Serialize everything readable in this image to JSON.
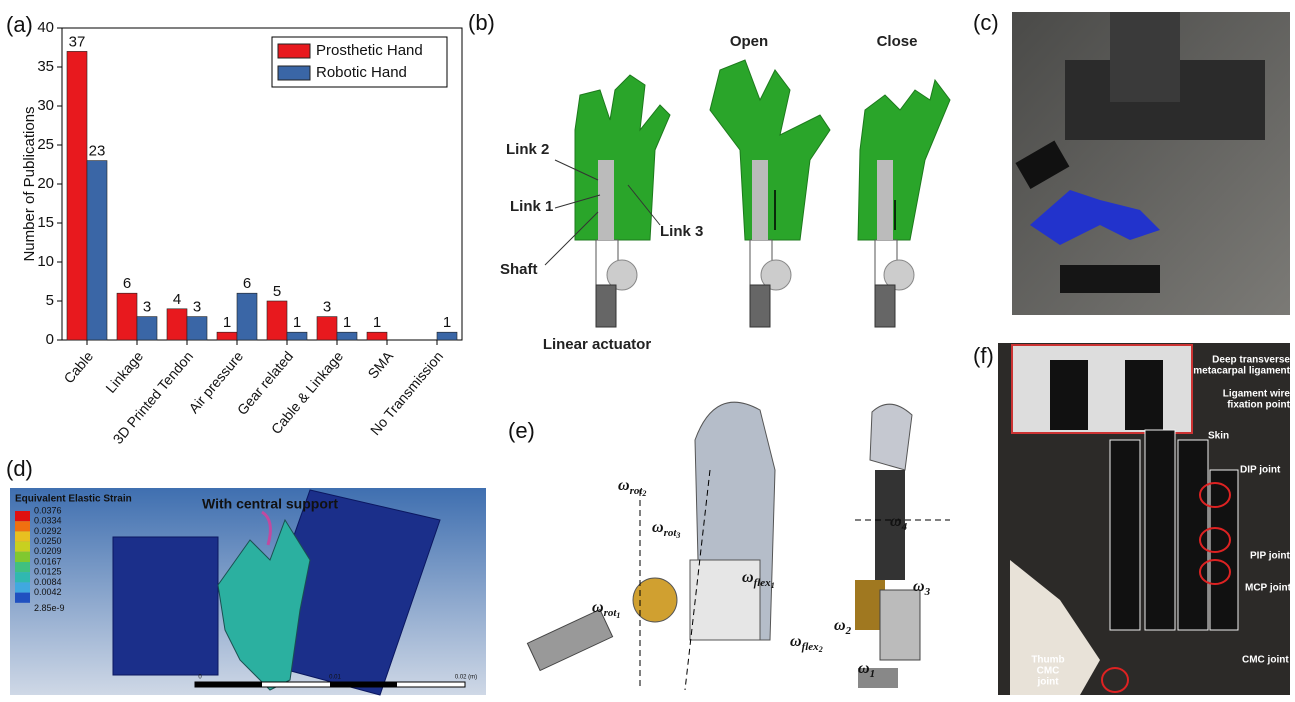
{
  "panel_labels": {
    "a": "(a)",
    "b": "(b)",
    "c": "(c)",
    "d": "(d)",
    "e": "(e)",
    "f": "(f)"
  },
  "chart_data": {
    "type": "bar",
    "y_label": "Number of Publications",
    "categories": [
      "Cable",
      "Linkage",
      "3D Printed Tendon",
      "Air pressure",
      "Gear related",
      "Cable & Linkage",
      "SMA",
      "No Transmission"
    ],
    "series": [
      {
        "name": "Prosthetic  Hand",
        "color": "#e8191e",
        "values": [
          37,
          6,
          4,
          1,
          5,
          3,
          1,
          null
        ]
      },
      {
        "name": "Robotic Hand",
        "color": "#3a66a6",
        "values": [
          23,
          3,
          3,
          6,
          1,
          1,
          null,
          1
        ]
      }
    ],
    "ylim": [
      0,
      40
    ],
    "yticks": [
      0,
      5,
      10,
      15,
      20,
      25,
      30,
      35,
      40
    ],
    "legend": "upper right",
    "grid": false
  },
  "panel_b": {
    "open": "Open",
    "close": "Close",
    "link2": "Link 2",
    "link1": "Link 1",
    "link3": "Link 3",
    "shaft": "Shaft",
    "actuator": "Linear actuator"
  },
  "panel_d": {
    "legend_title": "Equivalent Elastic Strain",
    "legend_labels": [
      "0.0376",
      "0.0334",
      "0.0292",
      "0.0250",
      "0.0209",
      "0.0167",
      "0.0125",
      "0.0084",
      "0.0042",
      "2.85e-9"
    ],
    "annotation": "With central support",
    "scale_labels": [
      "0",
      "0.01",
      "0.02 (m)"
    ]
  },
  "panel_e": {
    "symbols": [
      {
        "base": "ω",
        "sub": "rot",
        "subsub": "2"
      },
      {
        "base": "ω",
        "sub": "rot",
        "subsub": "3"
      },
      {
        "base": "ω",
        "sub": "flex",
        "subsub": "1"
      },
      {
        "base": "ω",
        "sub": "rot",
        "subsub": "1"
      },
      {
        "base": "ω",
        "sub": "flex",
        "subsub": "2"
      },
      {
        "base": "ω",
        "sub": "4"
      },
      {
        "base": "ω",
        "sub": "3"
      },
      {
        "base": "ω",
        "sub": "2"
      },
      {
        "base": "ω",
        "sub": "1"
      }
    ]
  },
  "panel_f": {
    "ligament": [
      "Deep transverse",
      "metacarpal ligament"
    ],
    "fixation": [
      "Ligament wire",
      "fixation point"
    ],
    "skin": "Skin",
    "dip": "DIP joint",
    "pip": "PIP joint",
    "mcp": "MCP joint",
    "cmc": "CMC joint",
    "thumb": [
      "Thumb",
      "CMC",
      "joint"
    ]
  }
}
